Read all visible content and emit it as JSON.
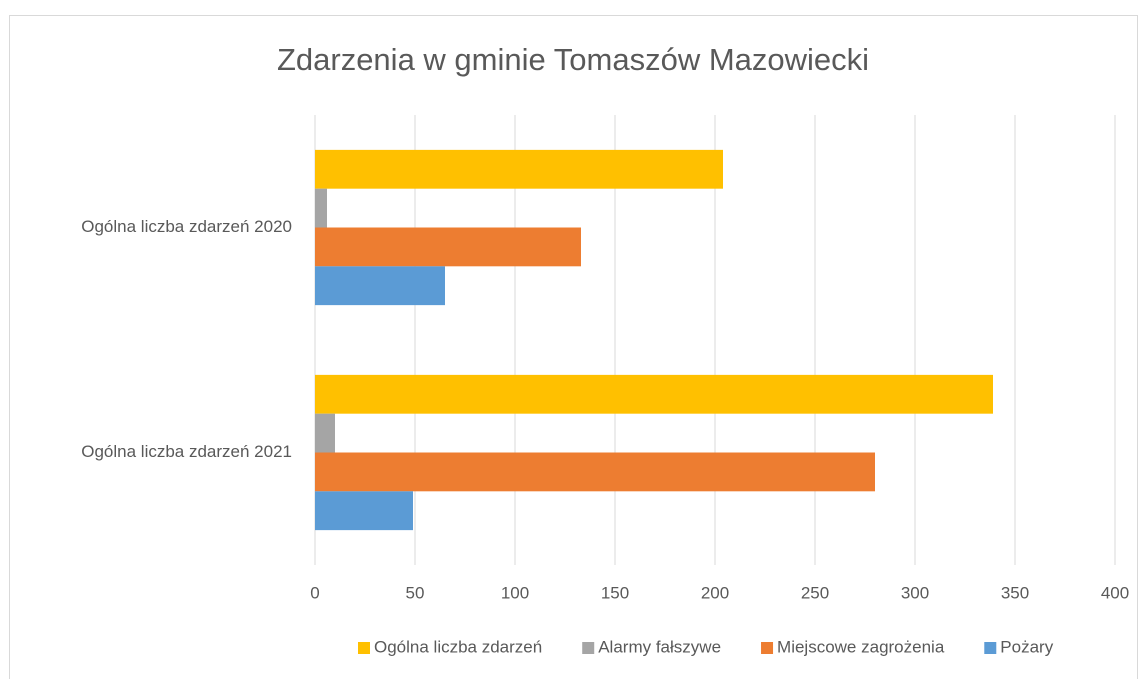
{
  "chart_data": {
    "type": "bar",
    "orientation": "horizontal",
    "title": "Zdarzenia w gminie Tomaszów Mazowiecki",
    "categories": [
      "Ogólna liczba zdarzeń 2020",
      "Ogólna liczba zdarzeń 2021"
    ],
    "series": [
      {
        "name": "Ogólna liczba zdarzeń",
        "color": "#ffc000",
        "values": [
          204,
          339
        ]
      },
      {
        "name": "Alarmy fałszywe",
        "color": "#a5a5a5",
        "values": [
          6,
          10
        ]
      },
      {
        "name": "Miejscowe zagrożenia",
        "color": "#ed7d31",
        "values": [
          133,
          280
        ]
      },
      {
        "name": "Pożary",
        "color": "#5b9bd5",
        "values": [
          65,
          49
        ]
      }
    ],
    "xlim": [
      0,
      400
    ],
    "xticks": [
      0,
      50,
      100,
      150,
      200,
      250,
      300,
      350,
      400
    ],
    "grid": true,
    "legend": "bottom"
  }
}
